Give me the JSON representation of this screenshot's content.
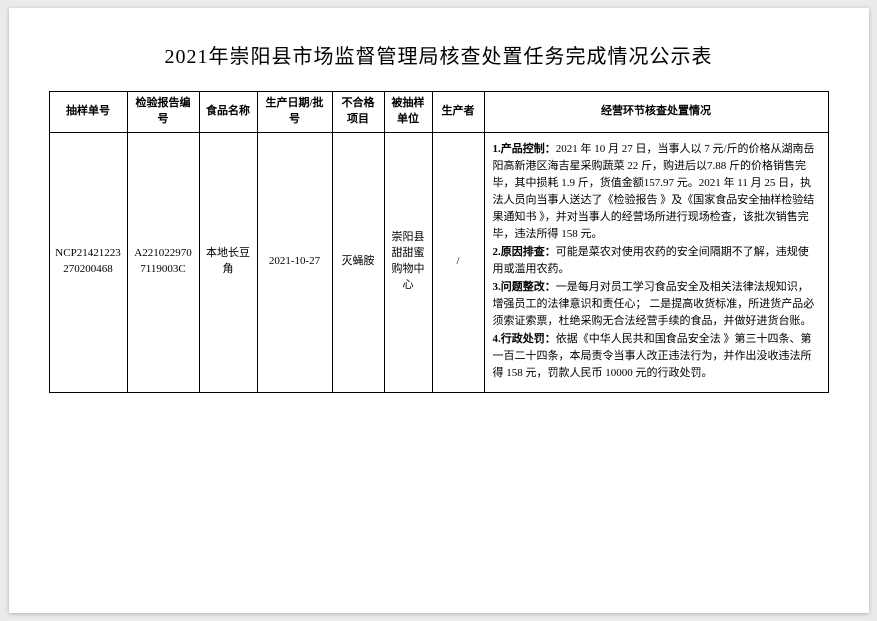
{
  "title": "2021年崇阳县市场监督管理局核查处置任务完成情况公示表",
  "headers": {
    "c1": "抽样单号",
    "c2": "检验报告编号",
    "c3": "食品名称",
    "c4": "生产日期/批号",
    "c5": "不合格项目",
    "c6": "被抽样单位",
    "c7": "生产者",
    "c8": "经营环节核查处置情况"
  },
  "row": {
    "sample_no": "NCP21421223270200468",
    "report_no": "A2210229707119003C",
    "food_name": "本地长豆角",
    "prod_date": "2021-10-27",
    "fail_item": "灭蝇胺",
    "sampled_unit": "崇阳县甜甜蜜购物中心",
    "producer": "/",
    "detail": {
      "s1_label": "1.产品控制：",
      "s1_text": "2021 年 10 月 27 日，当事人以 7 元/斤的价格从湖南岳阳高新港区海吉星采购蔬菜  22 斤，购进后以7.88 斤的价格销售完毕，其中损耗 1.9 斤，货值金额157.97 元。2021 年 11 月 25 日，执法人员向当事人送达了《检验报告 》及《国家食品安全抽样检验结果通知书 》，并对当事人的经营场所进行现场检查，该批次销售完毕，违法所得 158 元。",
      "s2_label": "2.原因排查：",
      "s2_text": "可能是菜农对使用农药的安全间隔期不了解，违规使用或滥用农药。",
      "s3_label": "3.问题整改：",
      "s3_text": "一是每月对员工学习食品安全及相关法律法规知识，增强员工的法律意识和责任心；  二是提高收货标准，所进货产品必须索证索票，杜绝采购无合法经营手续的食品，并做好进货台账。",
      "s4_label": "4.行政处罚：",
      "s4_text": "依据《中华人民共和国食品安全法 》第三十四条、第一百二十四条，本局责令当事人改正违法行为，并作出没收违法所得 158 元，罚款人民币 10000 元的行政处罚。"
    }
  }
}
